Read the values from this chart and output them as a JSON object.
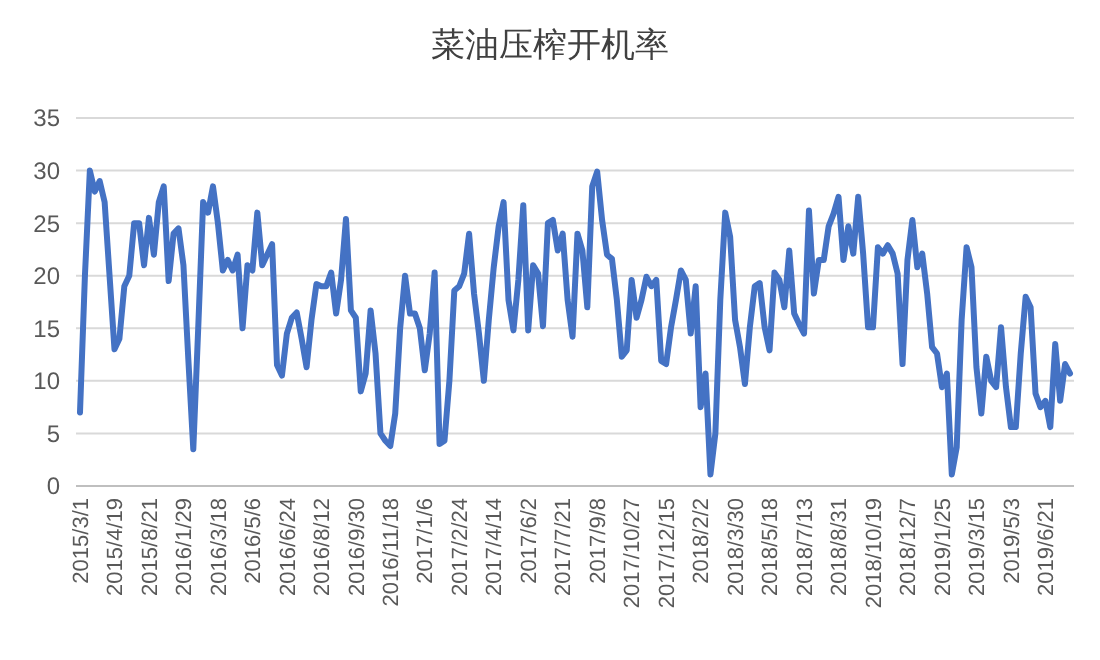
{
  "chart_data": {
    "type": "line",
    "title": "菜油压榨开机率",
    "categories": [
      "2015/3/1",
      null,
      null,
      null,
      null,
      null,
      null,
      "2015/4/19",
      null,
      null,
      null,
      null,
      null,
      null,
      "2015/8/21",
      null,
      null,
      null,
      null,
      null,
      null,
      "2016/1/29",
      null,
      null,
      null,
      null,
      null,
      null,
      "2016/3/18",
      null,
      null,
      null,
      null,
      null,
      null,
      "2016/5/6",
      null,
      null,
      null,
      null,
      null,
      null,
      "2016/6/24",
      null,
      null,
      null,
      null,
      null,
      null,
      "2016/8/12",
      null,
      null,
      null,
      null,
      null,
      null,
      "2016/9/30",
      null,
      null,
      null,
      null,
      null,
      null,
      "2016/11/18",
      null,
      null,
      null,
      null,
      null,
      null,
      "2017/1/6",
      null,
      null,
      null,
      null,
      null,
      null,
      "2017/2/24",
      null,
      null,
      null,
      null,
      null,
      null,
      "2017/4/14",
      null,
      null,
      null,
      null,
      null,
      null,
      "2017/6/2",
      null,
      null,
      null,
      null,
      null,
      null,
      "2017/7/21",
      null,
      null,
      null,
      null,
      null,
      null,
      "2017/9/8",
      null,
      null,
      null,
      null,
      null,
      null,
      "2017/10/27",
      null,
      null,
      null,
      null,
      null,
      null,
      "2017/12/15",
      null,
      null,
      null,
      null,
      null,
      null,
      "2018/2/2",
      null,
      null,
      null,
      null,
      null,
      null,
      "2018/3/30",
      null,
      null,
      null,
      null,
      null,
      null,
      "2018/5/18",
      null,
      null,
      null,
      null,
      null,
      null,
      "2018/7/13",
      null,
      null,
      null,
      null,
      null,
      null,
      "2018/8/31",
      null,
      null,
      null,
      null,
      null,
      null,
      "2018/10/19",
      null,
      null,
      null,
      null,
      null,
      null,
      "2018/12/7",
      null,
      null,
      null,
      null,
      null,
      null,
      "2019/1/25",
      null,
      null,
      null,
      null,
      null,
      null,
      "2019/3/15",
      null,
      null,
      null,
      null,
      null,
      null,
      "2019/5/3",
      null,
      null,
      null,
      null,
      null,
      null,
      "2019/6/21",
      null,
      null,
      null,
      null,
      null
    ],
    "series": [
      {
        "color": "#4472c4",
        "values": [
          7,
          20,
          30,
          28,
          29,
          27,
          20,
          13,
          14,
          19,
          20,
          25,
          25,
          21,
          25.5,
          22,
          27,
          28.5,
          19.5,
          24,
          24.5,
          21,
          12,
          3.5,
          15,
          27,
          26,
          28.5,
          25,
          20.5,
          21.5,
          20.5,
          22,
          15,
          21,
          20.5,
          26,
          21,
          22,
          23,
          11.5,
          10.5,
          14.5,
          16,
          16.5,
          14,
          11.3,
          15.8,
          19.2,
          19,
          19,
          20.3,
          16.4,
          19.6,
          25.4,
          16.7,
          16,
          9,
          10.7,
          16.7,
          12.6,
          5,
          4.3,
          3.8,
          6.9,
          15,
          20,
          16.4,
          16.4,
          15,
          11,
          14.5,
          20.3,
          4,
          4.3,
          10,
          18.6,
          19,
          20.2,
          24,
          18.3,
          14.5,
          10,
          15.8,
          20.8,
          24.7,
          27,
          17.7,
          14.8,
          19.6,
          26.7,
          14.8,
          21,
          20.2,
          15.2,
          25,
          25.3,
          22.4,
          24,
          17.7,
          14.2,
          24,
          22.4,
          17,
          28.5,
          29.9,
          25.3,
          22,
          21.6,
          17.7,
          12.3,
          12.9,
          19.6,
          16,
          17.7,
          19.9,
          19,
          19.6,
          11.9,
          11.6,
          15.1,
          17.7,
          20.5,
          19.6,
          14.5,
          19,
          7.5,
          10.7,
          1.1,
          5,
          17.7,
          26,
          23.7,
          15.8,
          13.2,
          9.7,
          15.1,
          19,
          19.3,
          15.1,
          12.9,
          20.3,
          19.6,
          17,
          22.4,
          16.4,
          15.4,
          14.5,
          26.2,
          18.3,
          21.5,
          21.5,
          24.7,
          25.9,
          27.5,
          21.5,
          24.7,
          22.1,
          27.5,
          22.1,
          15.1,
          15.1,
          22.7,
          22.1,
          22.9,
          22.1,
          20.2,
          11.6,
          21.5,
          25.3,
          20.8,
          22.1,
          18.3,
          13.2,
          12.6,
          9.4,
          10.7,
          1.1,
          3.7,
          15.8,
          22.7,
          20.8,
          11.3,
          6.9,
          12.3,
          10,
          9.4,
          15.1,
          9.4,
          5.6,
          5.6,
          12.6,
          18,
          17,
          8.8,
          7.5,
          8.1,
          5.6,
          13.5,
          8.1,
          11.6,
          10.7
        ]
      }
    ],
    "ylim": [
      0,
      35
    ],
    "yticks": [
      0,
      5,
      10,
      15,
      20,
      25,
      30,
      35
    ],
    "grid": "y"
  }
}
